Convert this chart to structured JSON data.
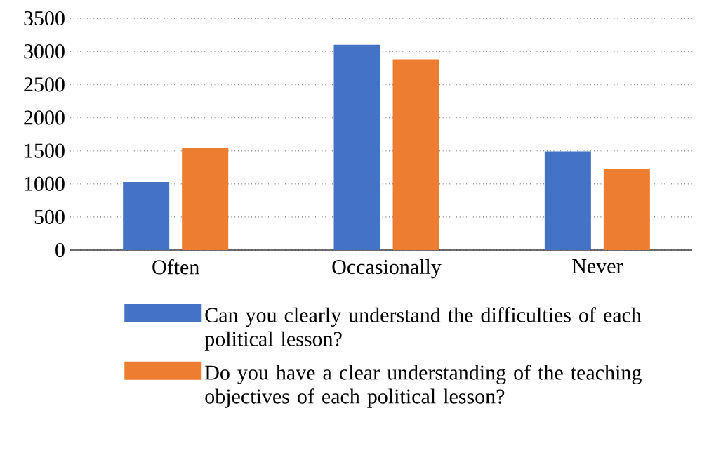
{
  "chart_data": {
    "type": "bar",
    "categories": [
      "Often",
      "Occasionally",
      "Never"
    ],
    "series": [
      {
        "name": "Can you clearly understand the difficulties of each political lesson?",
        "color": "#4472c4",
        "values": [
          1030,
          3100,
          1490
        ]
      },
      {
        "name": "Do you have a clear understanding of the teaching objectives of each political lesson?",
        "color": "#ed7d31",
        "values": [
          1540,
          2880,
          1220
        ]
      }
    ],
    "ylim": [
      0,
      3500
    ],
    "yticks": [
      0,
      500,
      1000,
      1500,
      2000,
      2500,
      3000,
      3500
    ],
    "grid": "y",
    "legend": "bottom"
  }
}
